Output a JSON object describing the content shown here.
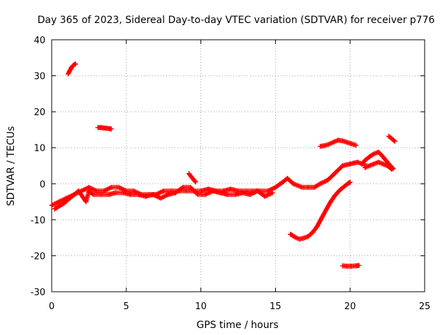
{
  "chart_data": {
    "type": "scatter",
    "title": "Day 365 of 2023, Sidereal Day-to-day VTEC variation (SDTVAR) for receiver p776",
    "xlabel": "GPS time / hours",
    "ylabel": "SDTVAR / TECUs",
    "xlim": [
      0,
      25
    ],
    "ylim": [
      -30,
      40
    ],
    "xticks": [
      "0",
      "5",
      "10",
      "15",
      "20",
      "25"
    ],
    "yticks": [
      "-30",
      "-20",
      "-10",
      "0",
      "10",
      "20",
      "30",
      "40"
    ],
    "grid": true,
    "marker": "plus",
    "color": "#ff0000",
    "series": [
      {
        "name": "main-trend",
        "x": [
          0.0,
          0.5,
          1.0,
          1.5,
          2.0,
          2.5,
          3.0,
          3.5,
          4.0,
          4.5,
          5.0,
          5.5,
          6.0,
          6.5,
          7.0,
          7.5,
          8.0,
          8.5,
          9.0,
          9.5,
          10.0,
          10.5,
          11.0,
          11.5,
          12.0,
          12.5,
          13.0,
          13.5,
          14.0,
          14.5,
          15.0,
          15.5,
          15.8,
          16.2,
          16.8,
          17.2,
          17.6,
          18.0,
          18.5,
          19.0,
          19.5,
          20.0,
          20.5,
          20.8,
          21.0
        ],
        "y": [
          -6,
          -5,
          -4,
          -3,
          -2,
          -1,
          -2,
          -2,
          -1,
          -1,
          -2,
          -2,
          -3,
          -3,
          -3,
          -2,
          -2,
          -2,
          -2,
          -2,
          -2,
          -1.5,
          -2,
          -2,
          -1.5,
          -2,
          -2,
          -2,
          -2,
          -2,
          -1,
          0.5,
          1.5,
          0,
          -1,
          -1,
          -1,
          0,
          1,
          3,
          5,
          5.5,
          6,
          5.5,
          5.5
        ]
      },
      {
        "name": "main-noise",
        "x": [
          0.2,
          0.8,
          1.8,
          2.3,
          2.5,
          2.8,
          3.3,
          3.8,
          4.3,
          4.8,
          5.3,
          5.8,
          6.3,
          6.8,
          7.3,
          7.8,
          8.3,
          8.8,
          9.3,
          9.8,
          10.3,
          10.8,
          11.3,
          11.8,
          12.3,
          12.8,
          13.3,
          13.8,
          14.3,
          14.8
        ],
        "y": [
          -7,
          -5.5,
          -2,
          -5,
          -2,
          -3,
          -3,
          -3,
          -2.5,
          -2.5,
          -3,
          -3,
          -3.5,
          -3,
          -4,
          -3,
          -2.5,
          -1,
          -1,
          -3,
          -3,
          -2,
          -2.5,
          -3,
          -3,
          -2.5,
          -3,
          -2,
          -3.5,
          -2.5
        ]
      },
      {
        "name": "spike-9h",
        "x": [
          9.2,
          9.35,
          9.5,
          9.65
        ],
        "y": [
          2.8,
          2.0,
          1.2,
          0.5
        ]
      },
      {
        "name": "arc-early",
        "x": [
          1.1,
          1.2,
          1.3,
          1.4,
          1.5,
          1.6
        ],
        "y": [
          30.5,
          31.3,
          32.1,
          32.7,
          33.1,
          33.3
        ]
      },
      {
        "name": "short-15",
        "x": [
          3.1,
          3.3,
          3.5,
          3.7,
          3.9,
          4.0
        ],
        "y": [
          15.6,
          15.6,
          15.5,
          15.4,
          15.3,
          15.2
        ]
      },
      {
        "name": "arc-upper",
        "x": [
          18.0,
          18.3,
          18.6,
          18.9,
          19.2,
          19.5,
          19.8,
          20.1,
          20.4
        ],
        "y": [
          10.4,
          10.6,
          11.0,
          11.6,
          12.1,
          11.9,
          11.5,
          11.1,
          10.7
        ]
      },
      {
        "name": "rising-curve",
        "x": [
          16.0,
          16.3,
          16.6,
          16.9,
          17.2,
          17.5,
          17.8,
          18.1,
          18.4,
          18.7,
          19.0,
          19.3,
          19.6,
          19.9,
          20.0
        ],
        "y": [
          -14,
          -14.8,
          -15.4,
          -15.1,
          -14.6,
          -13.5,
          -11.8,
          -9.5,
          -7.2,
          -5.0,
          -3.2,
          -1.8,
          -0.8,
          0.2,
          0.4
        ]
      },
      {
        "name": "low-segment",
        "x": [
          19.5,
          19.8,
          20.1,
          20.4,
          20.6
        ],
        "y": [
          -22.8,
          -22.9,
          -22.9,
          -22.8,
          -22.7
        ]
      },
      {
        "name": "late-ridge",
        "x": [
          20.8,
          21.0,
          21.3,
          21.6,
          21.9,
          22.1,
          22.3,
          22.5,
          22.7,
          22.9
        ],
        "y": [
          5.5,
          6.5,
          7.5,
          8.3,
          8.8,
          8.0,
          7.0,
          6.0,
          5.0,
          4.2
        ]
      },
      {
        "name": "late-fill",
        "x": [
          21.0,
          21.3,
          21.6,
          21.9,
          22.2,
          22.5,
          22.8
        ],
        "y": [
          4.5,
          5.0,
          5.5,
          6.0,
          5.5,
          5.0,
          4.0
        ]
      },
      {
        "name": "late-short",
        "x": [
          22.6,
          22.8,
          23.0
        ],
        "y": [
          13.2,
          12.5,
          11.8
        ]
      }
    ]
  }
}
